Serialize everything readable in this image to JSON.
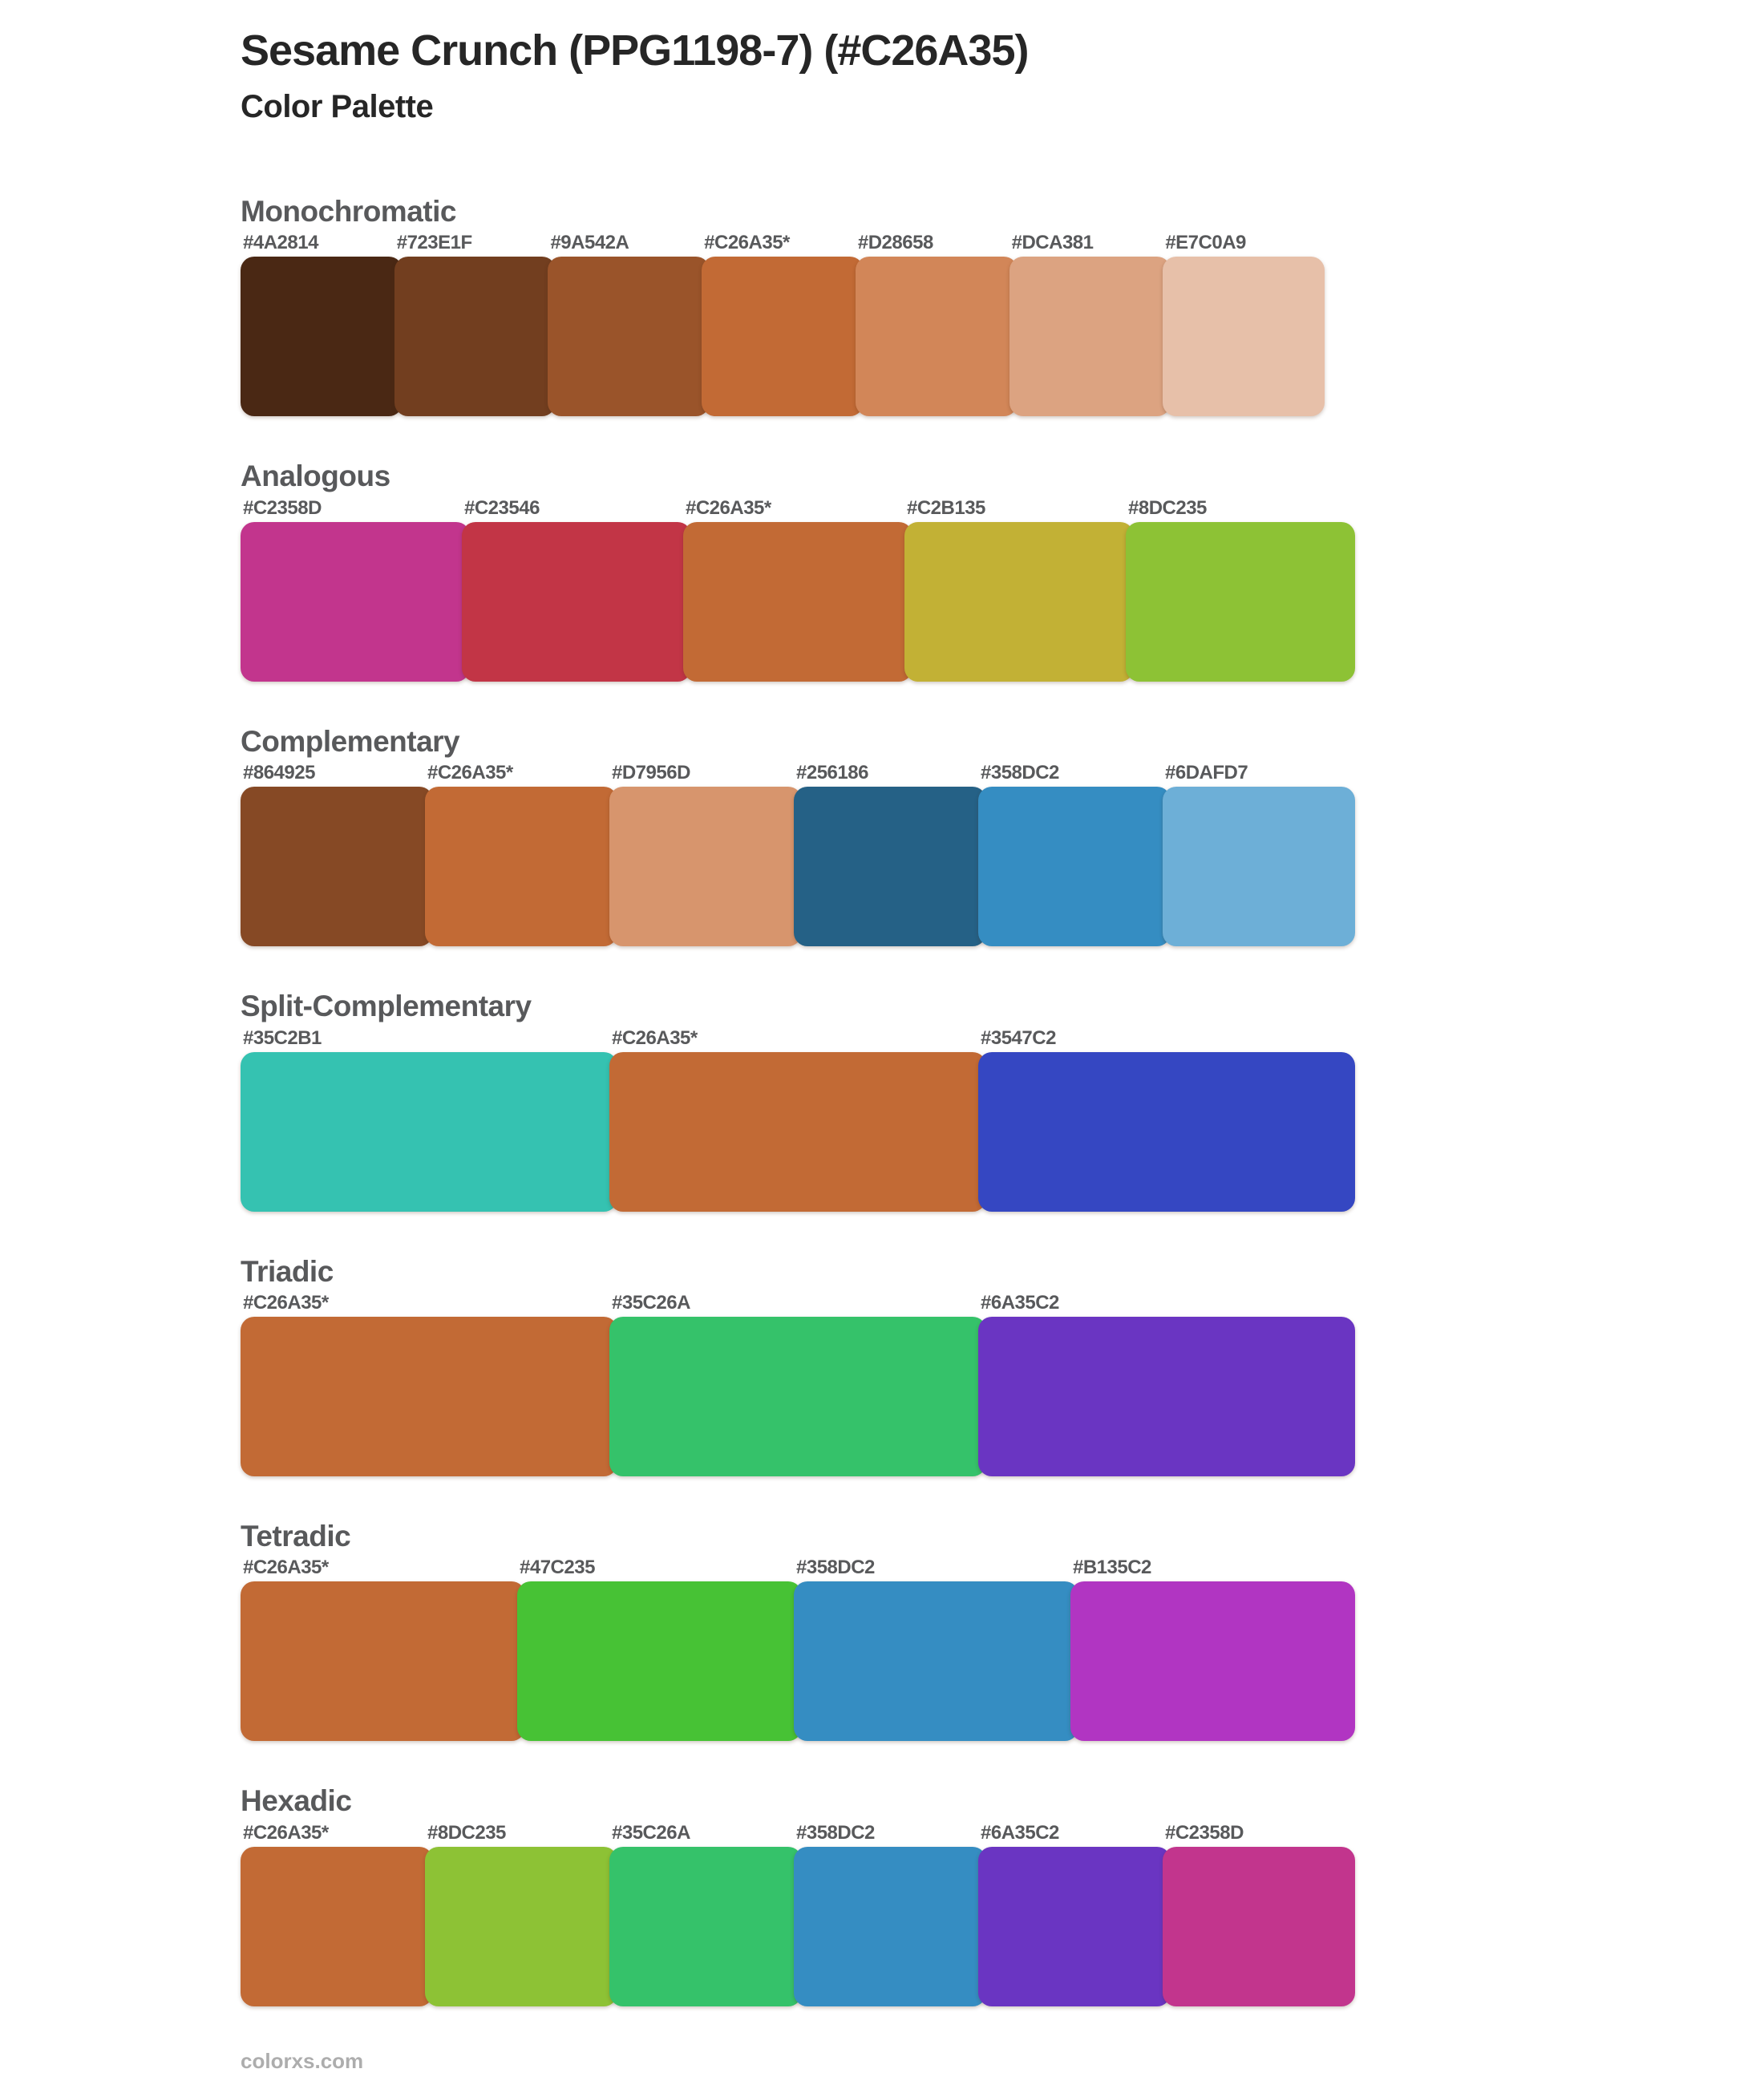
{
  "page": {
    "title": "Sesame Crunch (PPG1198-7) (#C26A35)",
    "subtitle": "Color Palette",
    "base_color": "#C26A35",
    "footer": "colorxs.com"
  },
  "colors": {
    "title_text": "#262626",
    "heading_text": "#58595b",
    "label_text": "#58595b",
    "footer_text": "#adadad",
    "background": "#ffffff"
  },
  "sections": [
    {
      "heading": "Monochromatic",
      "swatches": [
        {
          "label": "#4A2814",
          "hex": "#4A2814"
        },
        {
          "label": "#723E1F",
          "hex": "#723E1F"
        },
        {
          "label": "#9A542A",
          "hex": "#9A542A"
        },
        {
          "label": "#C26A35*",
          "hex": "#C26A35"
        },
        {
          "label": "#D28658",
          "hex": "#D28658"
        },
        {
          "label": "#DCA381",
          "hex": "#DCA381"
        },
        {
          "label": "#E7C0A9",
          "hex": "#E7C0A9"
        }
      ]
    },
    {
      "heading": "Analogous",
      "swatches": [
        {
          "label": "#C2358D",
          "hex": "#C2358D"
        },
        {
          "label": "#C23546",
          "hex": "#C23546"
        },
        {
          "label": "#C26A35*",
          "hex": "#C26A35"
        },
        {
          "label": "#C2B135",
          "hex": "#C2B135"
        },
        {
          "label": "#8DC235",
          "hex": "#8DC235"
        }
      ]
    },
    {
      "heading": "Complementary",
      "swatches": [
        {
          "label": "#864925",
          "hex": "#864925"
        },
        {
          "label": "#C26A35*",
          "hex": "#C26A35"
        },
        {
          "label": "#D7956D",
          "hex": "#D7956D"
        },
        {
          "label": "#256186",
          "hex": "#256186"
        },
        {
          "label": "#358DC2",
          "hex": "#358DC2"
        },
        {
          "label": "#6DAFD7",
          "hex": "#6DAFD7"
        }
      ]
    },
    {
      "heading": "Split-Complementary",
      "swatches": [
        {
          "label": "#35C2B1",
          "hex": "#35C2B1"
        },
        {
          "label": "#C26A35*",
          "hex": "#C26A35"
        },
        {
          "label": "#3547C2",
          "hex": "#3547C2"
        }
      ]
    },
    {
      "heading": "Triadic",
      "swatches": [
        {
          "label": "#C26A35*",
          "hex": "#C26A35"
        },
        {
          "label": "#35C26A",
          "hex": "#35C26A"
        },
        {
          "label": "#6A35C2",
          "hex": "#6A35C2"
        }
      ]
    },
    {
      "heading": "Tetradic",
      "swatches": [
        {
          "label": "#C26A35*",
          "hex": "#C26A35"
        },
        {
          "label": "#47C235",
          "hex": "#47C235"
        },
        {
          "label": "#358DC2",
          "hex": "#358DC2"
        },
        {
          "label": "#B135C2",
          "hex": "#B135C2"
        }
      ]
    },
    {
      "heading": "Hexadic",
      "swatches": [
        {
          "label": "#C26A35*",
          "hex": "#C26A35"
        },
        {
          "label": "#8DC235",
          "hex": "#8DC235"
        },
        {
          "label": "#35C26A",
          "hex": "#35C26A"
        },
        {
          "label": "#358DC2",
          "hex": "#358DC2"
        },
        {
          "label": "#6A35C2",
          "hex": "#6A35C2"
        },
        {
          "label": "#C2358D",
          "hex": "#C2358D"
        }
      ]
    }
  ]
}
